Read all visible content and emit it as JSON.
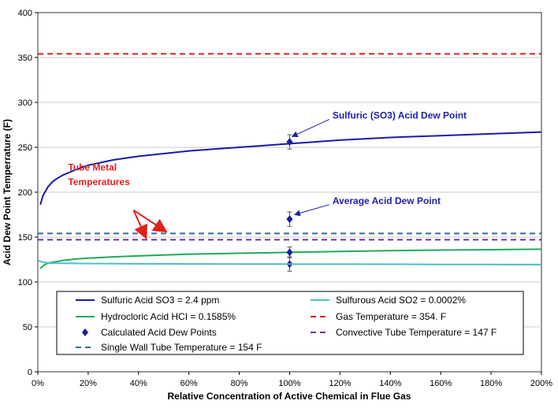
{
  "chart_data": {
    "type": "line",
    "title": "",
    "xlabel": "Relative Concentration of Active Chemical in Flue Gas",
    "ylabel": "Acid Dew Point Temperrature (F)",
    "xlim": [
      0,
      200
    ],
    "ylim": [
      0,
      400
    ],
    "x_ticks": [
      "0%",
      "20%",
      "40%",
      "60%",
      "80%",
      "100%",
      "120%",
      "140%",
      "160%",
      "180%",
      "200%"
    ],
    "y_ticks": [
      "0",
      "50",
      "100",
      "150",
      "200",
      "250",
      "300",
      "350",
      "400"
    ],
    "grid": "horizontal",
    "legend_position": "bottom-inside",
    "series": [
      {
        "name": "Sulfuric Acid SO3 = 2.4 ppm",
        "style": "solid",
        "color": "#1a1aa6",
        "x": [
          1,
          2,
          4,
          6,
          8,
          10,
          15,
          20,
          30,
          40,
          50,
          60,
          70,
          80,
          90,
          100,
          120,
          140,
          160,
          180,
          200
        ],
        "y": [
          186,
          196,
          206,
          212,
          216,
          219,
          225,
          230,
          236,
          240,
          243,
          246,
          248,
          250,
          252,
          254,
          258,
          261,
          263,
          265,
          267
        ]
      },
      {
        "name": "Hydrocloric Acid HCI = 0.1585%",
        "style": "solid",
        "color": "#1faa5a",
        "x": [
          1,
          2,
          4,
          6,
          8,
          10,
          15,
          20,
          30,
          40,
          50,
          60,
          70,
          80,
          90,
          100,
          120,
          140,
          160,
          180,
          200
        ],
        "y": [
          115,
          118,
          121,
          122,
          123,
          124,
          125.5,
          126.5,
          128,
          129,
          130,
          131,
          131.5,
          132,
          132.5,
          133,
          134,
          134.8,
          135.5,
          136,
          136.5
        ]
      },
      {
        "name": "Calculated Acid Dew Points",
        "style": "marker",
        "color": "#1a1aa6",
        "x": [
          100,
          100,
          100,
          100
        ],
        "y": [
          256,
          170,
          133,
          120
        ],
        "error": [
          8,
          8,
          6,
          8
        ]
      },
      {
        "name": "Single Wall Tube Temperature = 154 F",
        "style": "dashed",
        "color": "#2e6f96",
        "x": [
          0,
          200
        ],
        "y": [
          154,
          154
        ]
      },
      {
        "name": "Sulfurous Acid SO2 = 0.0002%",
        "style": "solid",
        "color": "#4fbcc9",
        "x": [
          0,
          2,
          5,
          10,
          20,
          40,
          60,
          80,
          100,
          120,
          140,
          160,
          180,
          200
        ],
        "y": [
          124,
          122,
          121,
          120.8,
          120.5,
          120.3,
          120.1,
          120,
          119.9,
          119.8,
          119.7,
          119.6,
          119.5,
          119.4
        ]
      },
      {
        "name": "Gas Temperature = 354. F",
        "style": "dashed",
        "color": "#d62020",
        "x": [
          0,
          200
        ],
        "y": [
          354,
          354
        ]
      },
      {
        "name": "Convective Tube Temperature = 147 F",
        "style": "dashed",
        "color": "#6a3597",
        "x": [
          0,
          200
        ],
        "y": [
          147,
          147
        ]
      }
    ],
    "annotations": [
      {
        "text": "Sulfuric (SO3) Acid Dew Point",
        "color": "blue",
        "text_x": 117,
        "text_y": 282,
        "arrow_to": [
          101,
          262
        ]
      },
      {
        "text": "Average Acid Dew Point",
        "color": "blue",
        "text_x": 117,
        "text_y": 187,
        "arrow_to": [
          102,
          175
        ]
      },
      {
        "text": "Tube Metal",
        "color": "red",
        "text_x": 12,
        "text_y": 224,
        "arrow_to": null
      },
      {
        "text": "Temperatures",
        "color": "red",
        "text_x": 12,
        "text_y": 208,
        "arrow_to": null
      }
    ],
    "annotation_arrows_red": [
      {
        "from": [
          38,
          180
        ],
        "to": [
          43,
          149
        ]
      },
      {
        "from": [
          38,
          180
        ],
        "to": [
          51,
          156
        ]
      }
    ]
  }
}
